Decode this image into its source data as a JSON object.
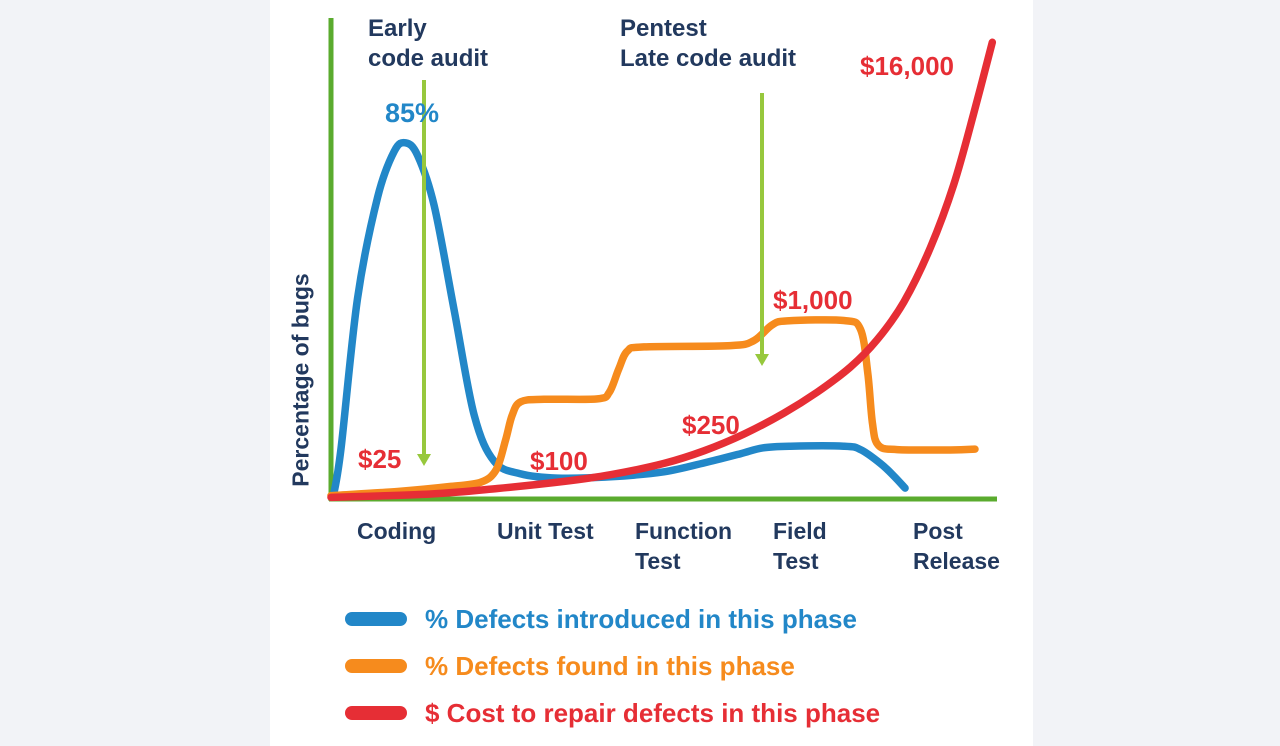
{
  "colors": {
    "page_background": "#f2f3f7",
    "panel_background": "#ffffff",
    "axis_green": "#5aab2e",
    "arrow_green": "#97c83d",
    "navy_text": "#22395e",
    "blue": "#2287c8",
    "orange": "#f68b1d",
    "red": "#e62e35"
  },
  "chart_data": {
    "type": "line",
    "title": "",
    "xlabel": "",
    "ylabel": "Percentage of bugs",
    "x_categories": [
      "Coding",
      "Unit Test",
      "Function Test",
      "Field Test",
      "Post Release"
    ],
    "x_labels": [
      [
        "Coding"
      ],
      [
        "Unit Test"
      ],
      [
        "Function",
        "Test"
      ],
      [
        "Field",
        "Test"
      ],
      [
        "Post",
        "Release"
      ]
    ],
    "ylim": [
      0,
      100
    ],
    "grid": false,
    "legend_position": "bottom",
    "series": [
      {
        "id": "introduced",
        "name": "% Defects introduced in this phase",
        "color": "#2287c8",
        "peak_label": "85%",
        "peak_value_pct": 85,
        "points": [
          [
            0.004,
            1
          ],
          [
            0.015,
            12
          ],
          [
            0.04,
            48
          ],
          [
            0.07,
            72
          ],
          [
            0.095,
            83
          ],
          [
            0.112,
            85
          ],
          [
            0.13,
            82
          ],
          [
            0.155,
            70
          ],
          [
            0.185,
            45
          ],
          [
            0.215,
            20
          ],
          [
            0.245,
            9
          ],
          [
            0.285,
            6
          ],
          [
            0.34,
            5
          ],
          [
            0.42,
            5.3
          ],
          [
            0.5,
            6.5
          ],
          [
            0.565,
            8.8
          ],
          [
            0.615,
            10.8
          ],
          [
            0.648,
            12.2
          ],
          [
            0.69,
            12.6
          ],
          [
            0.77,
            12.6
          ],
          [
            0.795,
            11.8
          ],
          [
            0.825,
            8.5
          ],
          [
            0.845,
            5.5
          ],
          [
            0.862,
            2.6
          ]
        ]
      },
      {
        "id": "found",
        "name": "% Defects found in this phase",
        "color": "#f68b1d",
        "points": [
          [
            0,
            0.8
          ],
          [
            0.1,
            1.8
          ],
          [
            0.18,
            3
          ],
          [
            0.225,
            4
          ],
          [
            0.248,
            7
          ],
          [
            0.262,
            14
          ],
          [
            0.272,
            20
          ],
          [
            0.285,
            23.2
          ],
          [
            0.32,
            23.8
          ],
          [
            0.4,
            23.9
          ],
          [
            0.418,
            25.5
          ],
          [
            0.432,
            31
          ],
          [
            0.445,
            35.3
          ],
          [
            0.47,
            36.3
          ],
          [
            0.6,
            36.6
          ],
          [
            0.635,
            37.8
          ],
          [
            0.662,
            41.5
          ],
          [
            0.685,
            42.5
          ],
          [
            0.77,
            42.6
          ],
          [
            0.795,
            40.5
          ],
          [
            0.806,
            30
          ],
          [
            0.813,
            18
          ],
          [
            0.822,
            12.8
          ],
          [
            0.85,
            11.8
          ],
          [
            0.93,
            11.7
          ],
          [
            0.967,
            11.9
          ]
        ]
      },
      {
        "id": "cost",
        "name": "$ Cost to repair defects in this phase",
        "color": "#e62e35",
        "unit": "USD",
        "points": [
          [
            0,
            0.4
          ],
          [
            0.15,
            1.2
          ],
          [
            0.25,
            2.5
          ],
          [
            0.35,
            4.2
          ],
          [
            0.42,
            5.8
          ],
          [
            0.5,
            8.5
          ],
          [
            0.56,
            11.5
          ],
          [
            0.62,
            15.5
          ],
          [
            0.68,
            20.5
          ],
          [
            0.73,
            25.5
          ],
          [
            0.78,
            31.5
          ],
          [
            0.82,
            38
          ],
          [
            0.86,
            47
          ],
          [
            0.9,
            60
          ],
          [
            0.935,
            75
          ],
          [
            0.965,
            92
          ],
          [
            0.993,
            109
          ]
        ]
      }
    ],
    "cost_labels": [
      {
        "text": "$25",
        "phase": "Coding"
      },
      {
        "text": "$100",
        "phase": "Unit Test"
      },
      {
        "text": "$250",
        "phase": "Function Test"
      },
      {
        "text": "$1,000",
        "phase": "Field Test"
      },
      {
        "text": "$16,000",
        "phase": "Post Release"
      }
    ],
    "annotations": [
      {
        "lines": [
          "Early",
          "code audit"
        ],
        "arrow": "down"
      },
      {
        "lines": [
          "Pentest",
          "Late code audit"
        ],
        "arrow": "down"
      }
    ]
  }
}
